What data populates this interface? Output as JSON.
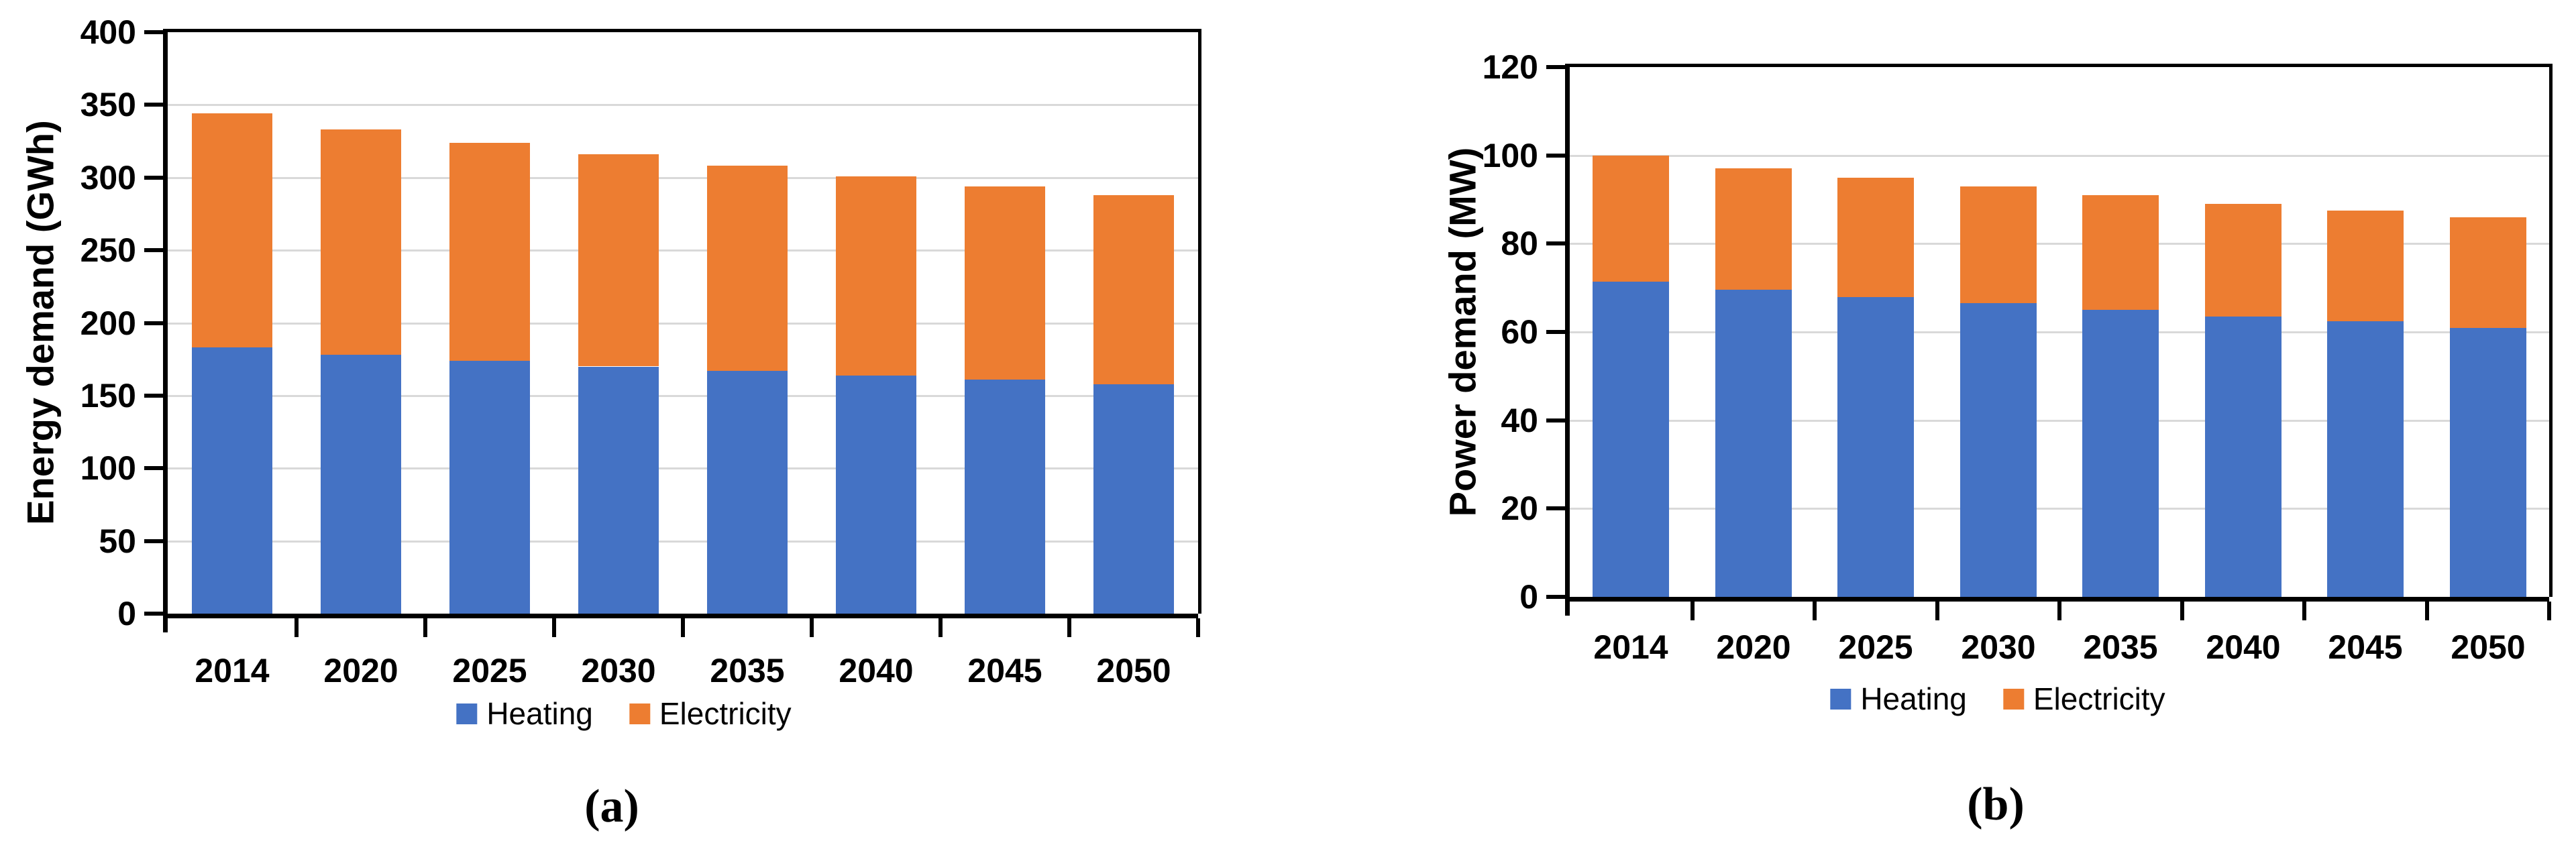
{
  "colors": {
    "heating": "#4472C4",
    "electricity": "#ED7D31",
    "gridline": "#D9D9D9",
    "axis": "#000000",
    "background": "#FFFFFF"
  },
  "chart_data": [
    {
      "type": "bar",
      "stacked": true,
      "panel_label": "(a)",
      "ylabel": "Energy demand (GWh)",
      "xlabel": "",
      "categories": [
        "2014",
        "2020",
        "2025",
        "2030",
        "2035",
        "2040",
        "2045",
        "2050"
      ],
      "series": [
        {
          "name": "Heating",
          "color": "#4472C4",
          "values": [
            183,
            178,
            174,
            170,
            167,
            164,
            161,
            158
          ]
        },
        {
          "name": "Electricity",
          "color": "#ED7D31",
          "values": [
            161,
            155,
            150,
            146,
            141,
            137,
            133,
            130
          ]
        }
      ],
      "totals": [
        344,
        333,
        324,
        316,
        308,
        301,
        294,
        288
      ],
      "ylim": [
        0,
        400
      ],
      "ytick_step": 50,
      "ytick_labels": [
        "0",
        "50",
        "100",
        "150",
        "200",
        "250",
        "300",
        "350",
        "400"
      ],
      "grid": true,
      "legend_position": "bottom"
    },
    {
      "type": "bar",
      "stacked": true,
      "panel_label": "(b)",
      "ylabel": "Power demand (MW)",
      "xlabel": "",
      "categories": [
        "2014",
        "2020",
        "2025",
        "2030",
        "2035",
        "2040",
        "2045",
        "2050"
      ],
      "series": [
        {
          "name": "Heating",
          "color": "#4472C4",
          "values": [
            71.5,
            69.5,
            68,
            66.5,
            65,
            63.5,
            62.5,
            61
          ]
        },
        {
          "name": "Electricity",
          "color": "#ED7D31",
          "values": [
            28.5,
            27.5,
            27,
            26.5,
            26,
            25.5,
            25,
            25
          ]
        }
      ],
      "totals": [
        100,
        97,
        95,
        93,
        91,
        89,
        87.5,
        86
      ],
      "ylim": [
        0,
        120
      ],
      "ytick_step": 20,
      "ytick_labels": [
        "0",
        "20",
        "40",
        "60",
        "80",
        "100",
        "120"
      ],
      "grid": true,
      "legend_position": "bottom"
    }
  ]
}
